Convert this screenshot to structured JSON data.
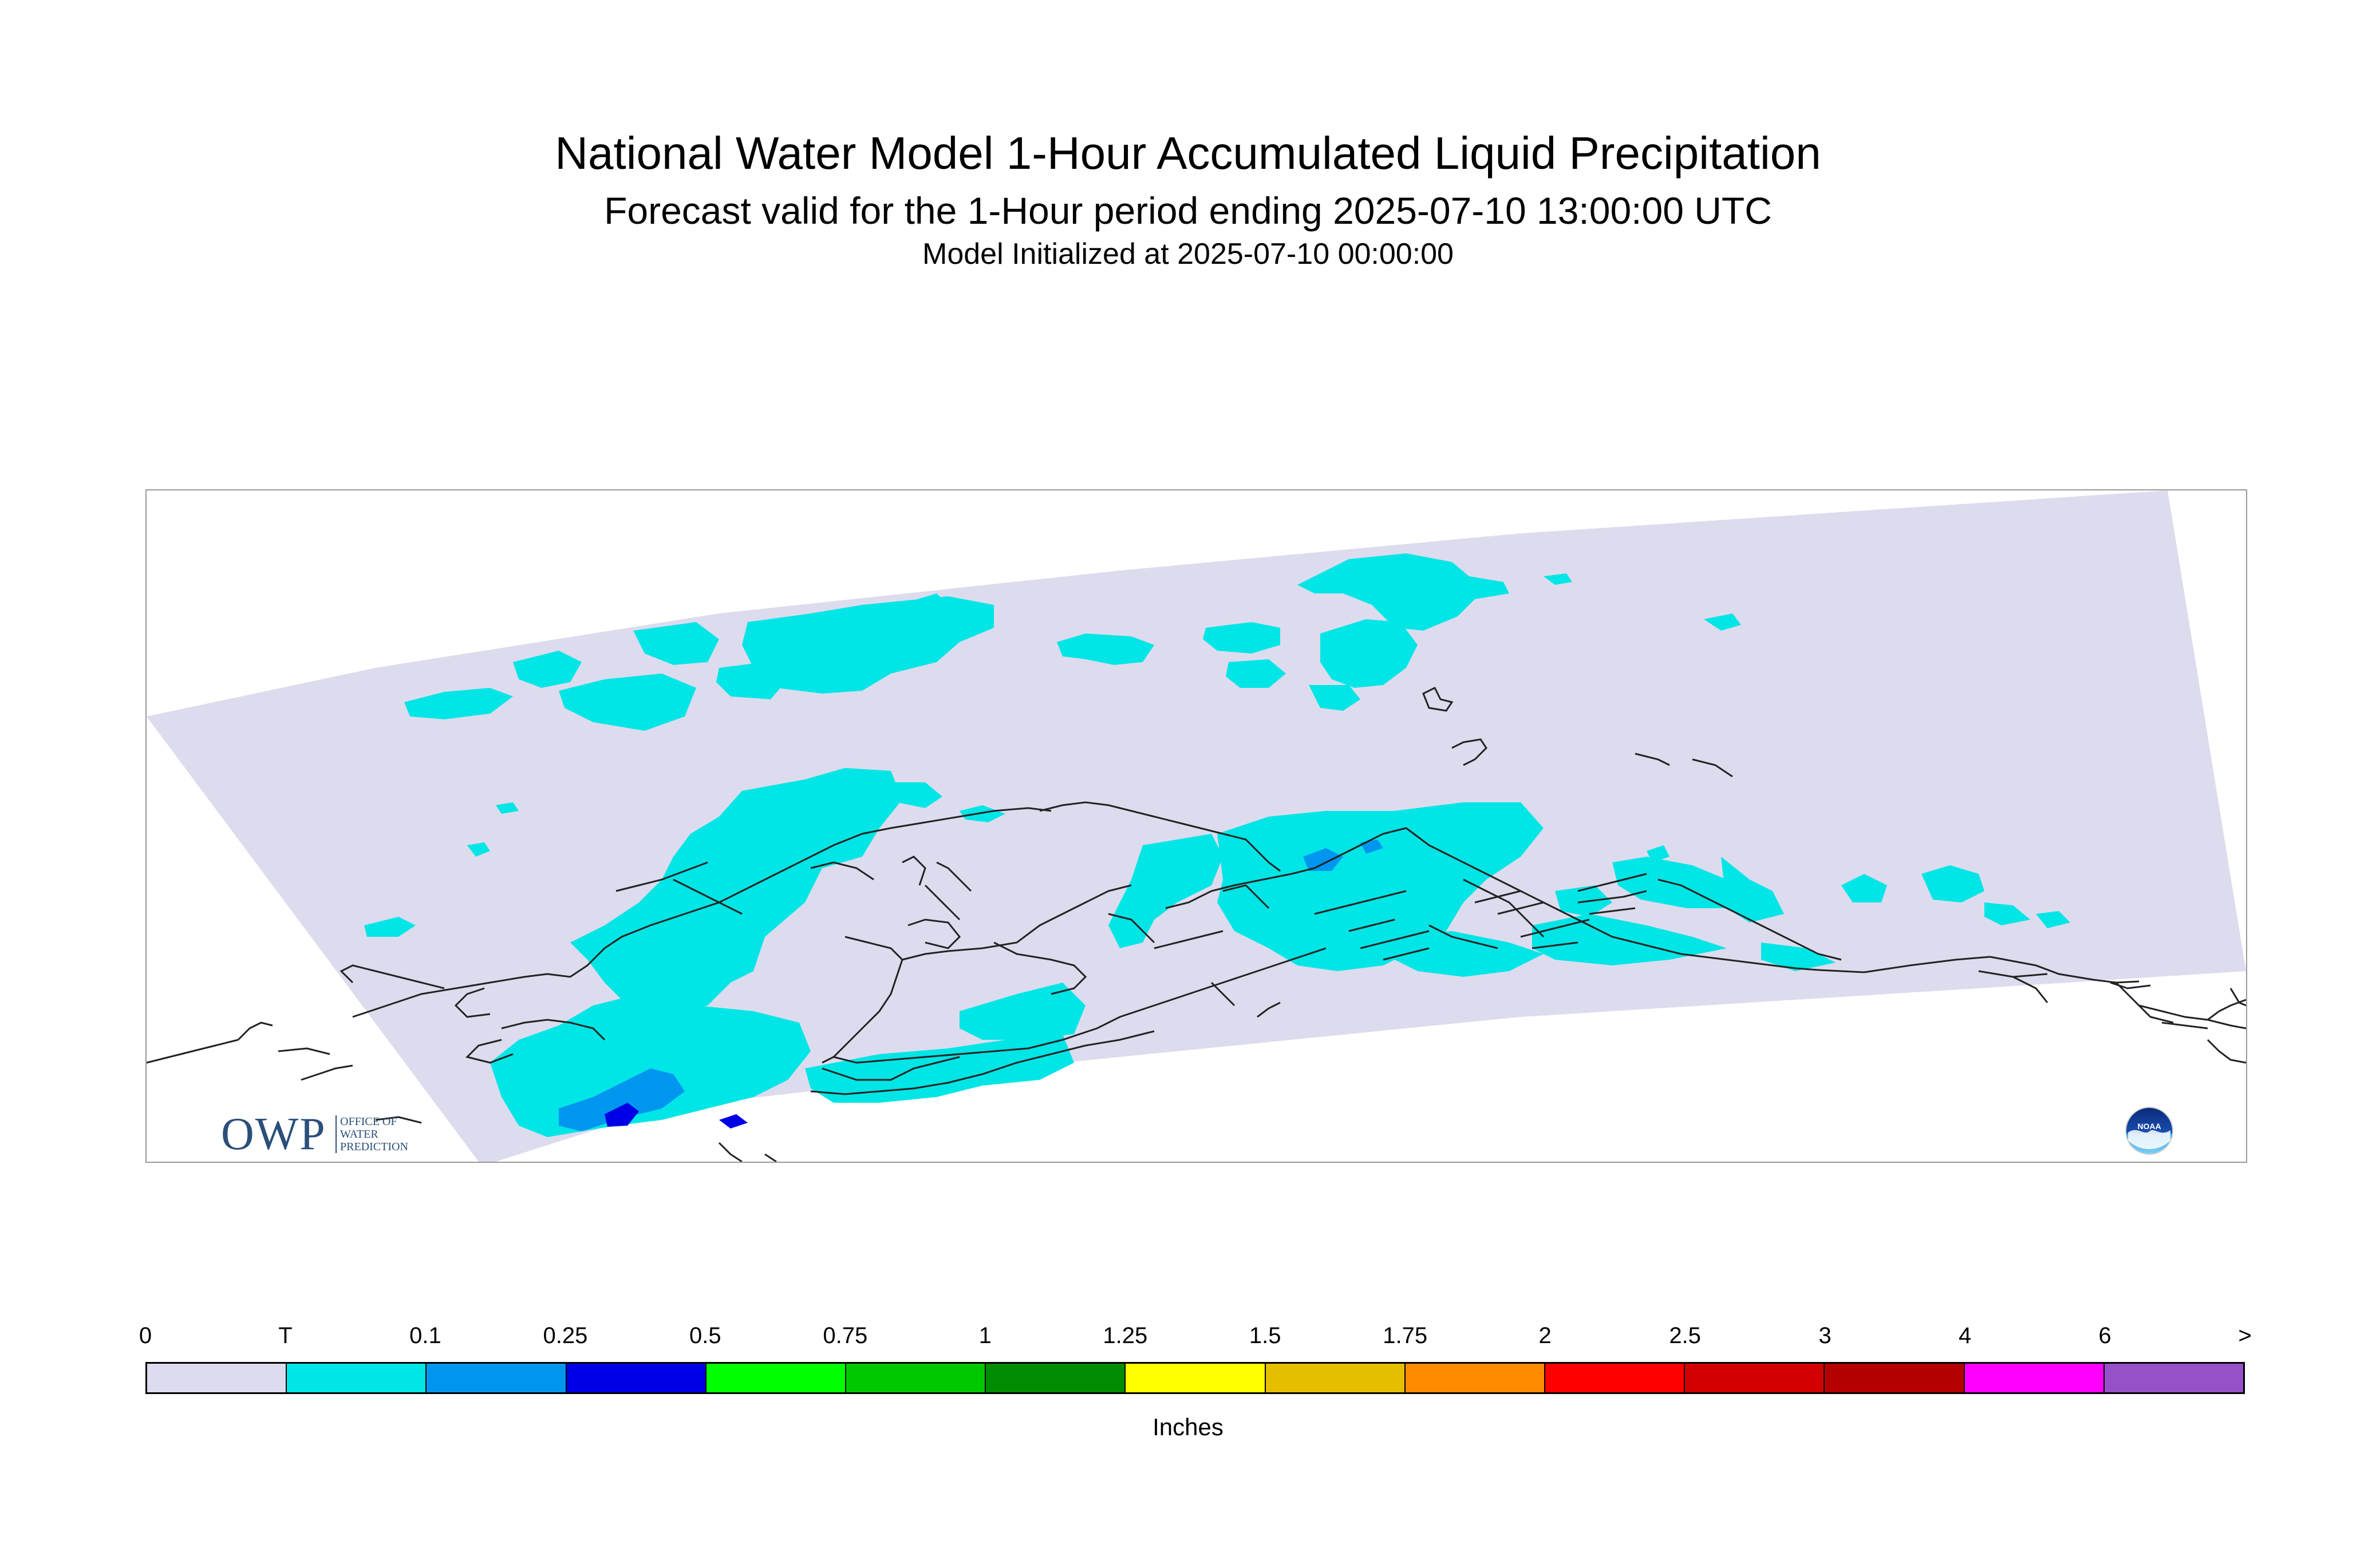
{
  "header": {
    "title": "National Water Model 1-Hour Accumulated Liquid Precipitation",
    "subtitle": "Forecast valid for the 1-Hour period ending 2025-07-10 13:00:00 UTC",
    "initialized": "Model Initialized at 2025-07-10 00:00:00"
  },
  "map": {
    "region_colors": {
      "domain": "#dcdcee",
      "trace": "#00e5e5",
      "light": "#0096f0",
      "moderate": "#0000e6",
      "coastline": "#222222"
    },
    "logos": {
      "owp_mark": "OWP",
      "owp_line1": "OFFICE OF",
      "owp_line2": "WATER",
      "owp_line3": "PREDICTION",
      "noaa_text": "NOAA",
      "noaa_icon": "noaa-seal-icon"
    }
  },
  "legend": {
    "units": "Inches",
    "tick_labels": [
      "0",
      "T",
      "0.1",
      "0.25",
      "0.5",
      "0.75",
      "1",
      "1.25",
      "1.5",
      "1.75",
      "2",
      "2.5",
      "3",
      "4",
      "6",
      ">"
    ],
    "swatch_colors": [
      "#dcdcee",
      "#00e5e5",
      "#0096f0",
      "#0000e6",
      "#00ff00",
      "#00c800",
      "#008c00",
      "#ffff00",
      "#e6be00",
      "#ff8c00",
      "#ff0000",
      "#d20000",
      "#b40000",
      "#ff00ff",
      "#9650c8"
    ]
  }
}
